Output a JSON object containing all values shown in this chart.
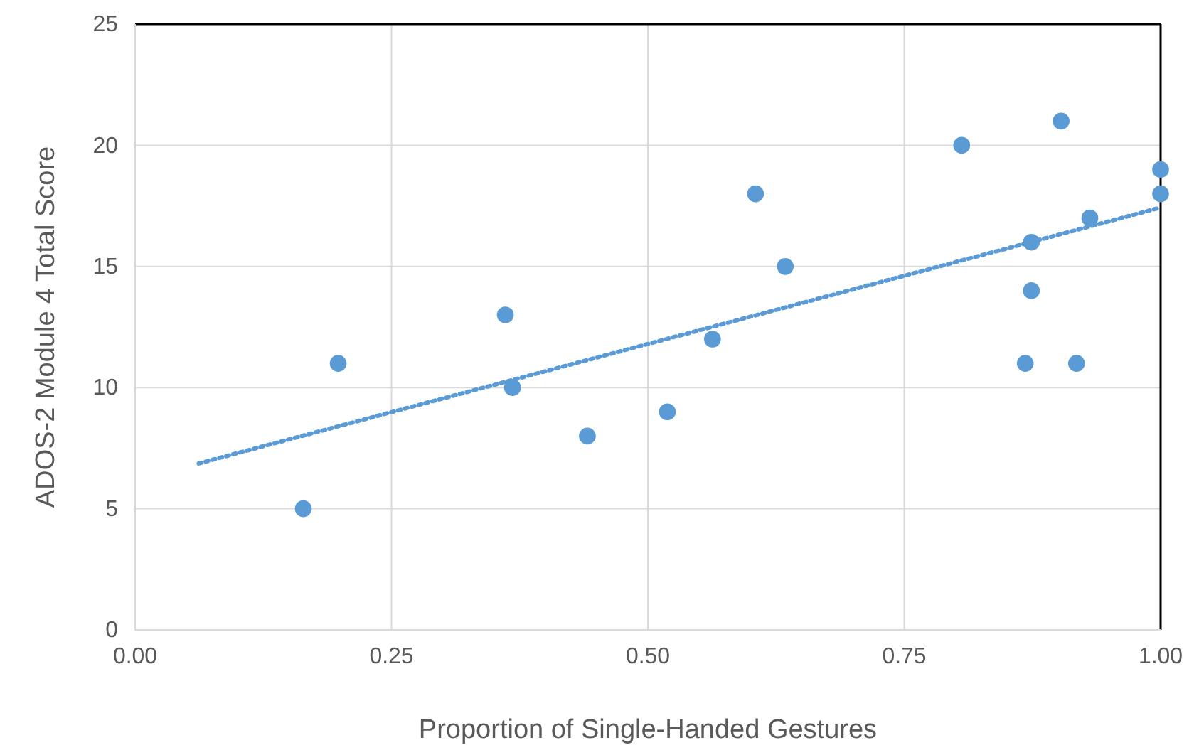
{
  "chart_data": {
    "type": "scatter",
    "xlabel": "Proportion of Single-Handed Gestures",
    "ylabel": "ADOS-2 Module 4 Total Score",
    "xlim": [
      0,
      1
    ],
    "ylim": [
      0,
      25
    ],
    "xticks": [
      {
        "value": 0,
        "label": "0.00"
      },
      {
        "value": 0.25,
        "label": "0.25"
      },
      {
        "value": 0.5,
        "label": "0.50"
      },
      {
        "value": 0.75,
        "label": "0.75"
      },
      {
        "value": 1,
        "label": "1.00"
      }
    ],
    "yticks": [
      0,
      5,
      10,
      15,
      20,
      25
    ],
    "grid": true,
    "series": [
      {
        "color": "#5b9bd5",
        "marker": "circle",
        "x": [
          0.164,
          0.198,
          0.361,
          0.368,
          0.441,
          0.519,
          0.563,
          0.605,
          0.634,
          0.806,
          0.903,
          0.868,
          0.874,
          0.874,
          0.918,
          0.931,
          1.0,
          1.0
        ],
        "values": [
          5,
          11,
          13,
          10,
          8,
          9,
          12,
          18,
          15,
          20,
          21,
          11,
          16,
          14,
          11,
          17,
          19,
          18
        ]
      },
      {
        "type": "line",
        "color": "#5b9bd5",
        "line_style": "dotted",
        "x": [
          0.062,
          1.0
        ],
        "values": [
          6.87,
          17.43
        ]
      }
    ]
  }
}
